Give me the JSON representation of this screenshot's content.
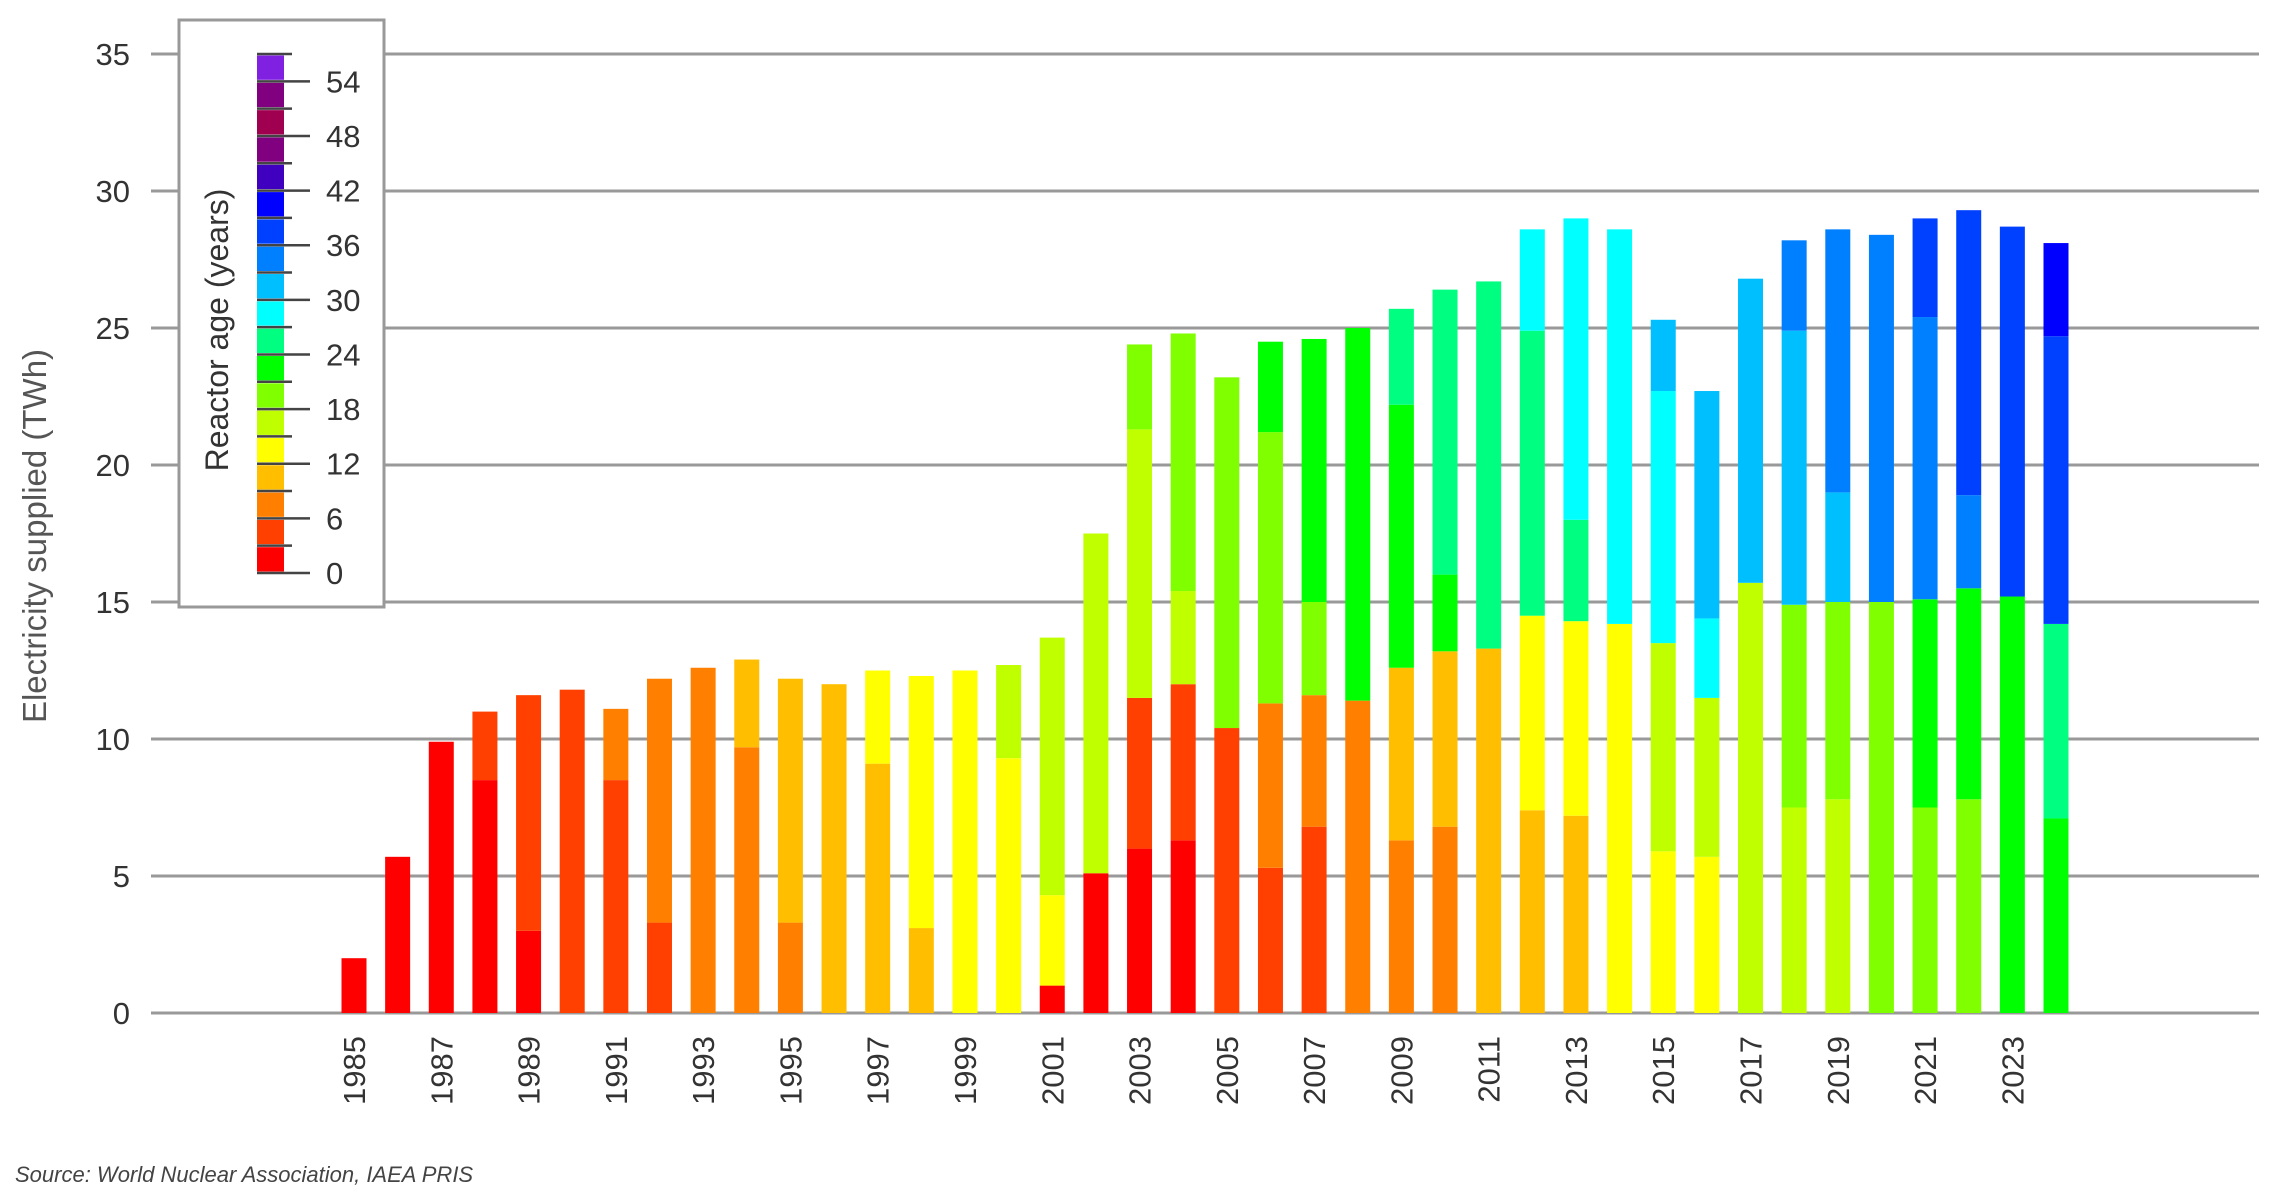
{
  "chart_data": {
    "type": "bar",
    "stacked": true,
    "ylabel": "Electricity supplied (TWh)",
    "ylim": [
      0,
      35
    ],
    "yticks": [
      0,
      5,
      10,
      15,
      20,
      25,
      30,
      35
    ],
    "grid": true,
    "categories": [
      1985,
      1986,
      1987,
      1988,
      1989,
      1990,
      1991,
      1992,
      1993,
      1994,
      1995,
      1996,
      1997,
      1998,
      1999,
      2000,
      2001,
      2002,
      2003,
      2004,
      2005,
      2006,
      2007,
      2008,
      2009,
      2010,
      2011,
      2012,
      2013,
      2014,
      2015,
      2016,
      2017,
      2018,
      2019,
      2020,
      2021,
      2022,
      2023,
      2024
    ],
    "xtick_labels": [
      "1985",
      "1987",
      "1989",
      "1991",
      "1993",
      "1995",
      "1997",
      "1999",
      "2001",
      "2003",
      "2005",
      "2007",
      "2009",
      "2011",
      "2013",
      "2015",
      "2017",
      "2019",
      "2021",
      "2023"
    ],
    "legend": {
      "title": "Reactor age (years)",
      "placement": "top-left",
      "tick_labels": [
        "0",
        "6",
        "12",
        "18",
        "24",
        "30",
        "36",
        "42",
        "48",
        "54"
      ],
      "bin_size_years": 3,
      "colors": [
        "#ff0000",
        "#ff4000",
        "#ff8000",
        "#ffbf00",
        "#ffff00",
        "#bfff00",
        "#80ff00",
        "#00ff00",
        "#00ff80",
        "#00ffff",
        "#00bfff",
        "#0080ff",
        "#0040ff",
        "#0000ff",
        "#4000bf",
        "#800080",
        "#a00050",
        "#800080",
        "#8020e0"
      ]
    },
    "note": "segments: [age bin index, cumulative top value in TWh]",
    "bars": [
      [
        [
          0,
          2.0
        ]
      ],
      [
        [
          0,
          5.7
        ]
      ],
      [
        [
          0,
          9.9
        ]
      ],
      [
        [
          0,
          8.5
        ],
        [
          1,
          11.0
        ]
      ],
      [
        [
          0,
          3.0
        ],
        [
          1,
          11.6
        ]
      ],
      [
        [
          1,
          11.8
        ]
      ],
      [
        [
          1,
          8.5
        ],
        [
          2,
          11.1
        ]
      ],
      [
        [
          1,
          3.3
        ],
        [
          2,
          12.2
        ]
      ],
      [
        [
          2,
          12.6
        ]
      ],
      [
        [
          2,
          9.7
        ],
        [
          3,
          12.9
        ]
      ],
      [
        [
          2,
          3.3
        ],
        [
          3,
          12.2
        ]
      ],
      [
        [
          3,
          12.0
        ]
      ],
      [
        [
          3,
          9.1
        ],
        [
          4,
          12.5
        ]
      ],
      [
        [
          3,
          3.1
        ],
        [
          4,
          12.3
        ]
      ],
      [
        [
          4,
          12.5
        ]
      ],
      [
        [
          4,
          9.3
        ],
        [
          5,
          12.7
        ]
      ],
      [
        [
          0,
          1.0
        ],
        [
          4,
          4.3
        ],
        [
          5,
          13.7
        ]
      ],
      [
        [
          0,
          5.1
        ],
        [
          5,
          17.5
        ]
      ],
      [
        [
          0,
          6.0
        ],
        [
          1,
          11.5
        ],
        [
          5,
          21.3
        ],
        [
          6,
          24.4
        ]
      ],
      [
        [
          0,
          6.3
        ],
        [
          1,
          12.0
        ],
        [
          5,
          15.4
        ],
        [
          6,
          24.8
        ]
      ],
      [
        [
          1,
          10.4
        ],
        [
          6,
          23.2
        ]
      ],
      [
        [
          1,
          5.3
        ],
        [
          2,
          11.3
        ],
        [
          6,
          21.2
        ],
        [
          7,
          24.5
        ]
      ],
      [
        [
          1,
          6.8
        ],
        [
          2,
          11.6
        ],
        [
          6,
          15.0
        ],
        [
          7,
          24.6
        ]
      ],
      [
        [
          2,
          11.4
        ],
        [
          7,
          25.0
        ]
      ],
      [
        [
          2,
          6.3
        ],
        [
          3,
          12.6
        ],
        [
          7,
          22.2
        ],
        [
          8,
          25.7
        ]
      ],
      [
        [
          2,
          6.8
        ],
        [
          3,
          13.2
        ],
        [
          7,
          16.0
        ],
        [
          8,
          26.4
        ]
      ],
      [
        [
          3,
          13.3
        ],
        [
          8,
          26.7
        ]
      ],
      [
        [
          3,
          7.4
        ],
        [
          4,
          14.5
        ],
        [
          8,
          24.9
        ],
        [
          9,
          28.6
        ]
      ],
      [
        [
          3,
          7.2
        ],
        [
          4,
          14.3
        ],
        [
          8,
          18.0
        ],
        [
          9,
          29.0
        ]
      ],
      [
        [
          4,
          14.2
        ],
        [
          9,
          28.6
        ]
      ],
      [
        [
          4,
          5.9
        ],
        [
          5,
          13.5
        ],
        [
          9,
          22.7
        ],
        [
          10,
          25.3
        ]
      ],
      [
        [
          4,
          5.7
        ],
        [
          5,
          11.5
        ],
        [
          9,
          14.4
        ],
        [
          10,
          22.7
        ]
      ],
      [
        [
          5,
          15.7
        ],
        [
          10,
          26.8
        ]
      ],
      [
        [
          5,
          7.5
        ],
        [
          6,
          14.9
        ],
        [
          10,
          24.9
        ],
        [
          11,
          28.2
        ]
      ],
      [
        [
          5,
          7.8
        ],
        [
          6,
          15.0
        ],
        [
          10,
          19.0
        ],
        [
          11,
          28.6
        ]
      ],
      [
        [
          6,
          15.0
        ],
        [
          11,
          28.4
        ]
      ],
      [
        [
          6,
          7.5
        ],
        [
          7,
          15.1
        ],
        [
          11,
          25.4
        ],
        [
          12,
          29.0
        ]
      ],
      [
        [
          6,
          7.8
        ],
        [
          7,
          15.5
        ],
        [
          11,
          18.9
        ],
        [
          12,
          29.3
        ]
      ],
      [
        [
          7,
          15.2
        ],
        [
          12,
          28.7
        ]
      ],
      [
        [
          7,
          7.1
        ],
        [
          8,
          14.2
        ],
        [
          12,
          24.7
        ],
        [
          13,
          28.1
        ]
      ]
    ]
  },
  "source": "Source: World Nuclear Association, IAEA PRIS"
}
